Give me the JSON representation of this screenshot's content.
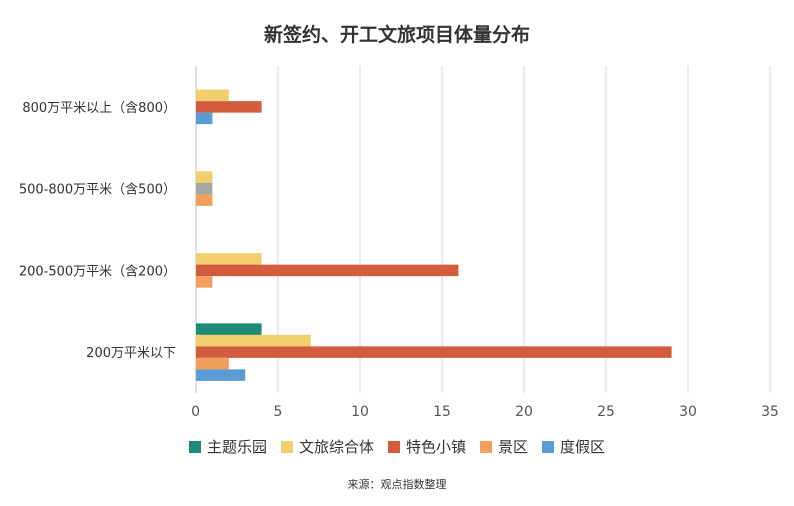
{
  "chart_data": {
    "type": "bar",
    "orientation": "horizontal",
    "title": "新签约、开工文旅项目体量分布",
    "source": "来源：观点指数整理",
    "categories": [
      "800万平米以上（含800）",
      "500-800万平米（含500）",
      "200-500万平米（含200）",
      "200万平米以下"
    ],
    "x_ticks": [
      "0",
      "5",
      "10",
      "15",
      "20",
      "25",
      "30",
      "35"
    ],
    "xlim": [
      0,
      35
    ],
    "grid": true,
    "legend_position": "bottom",
    "series": [
      {
        "name": "主题乐园",
        "color": "#1f8a7a",
        "values": [
          0,
          0,
          0,
          4
        ]
      },
      {
        "name": "文旅综合体",
        "color": "#f0cf6c",
        "values": [
          2,
          1,
          4,
          7
        ]
      },
      {
        "name": "特色小镇",
        "color": "#d35c3f",
        "values": [
          4,
          0,
          16,
          29
        ]
      },
      {
        "name": "",
        "color": "#a6a6a6",
        "values": [
          0,
          1,
          0,
          0
        ]
      },
      {
        "name": "景区",
        "color": "#f0a05a",
        "values": [
          0,
          1,
          1,
          2
        ]
      },
      {
        "name": "度假区",
        "color": "#5b9bd5",
        "values": [
          1,
          0,
          0,
          3
        ]
      }
    ]
  }
}
